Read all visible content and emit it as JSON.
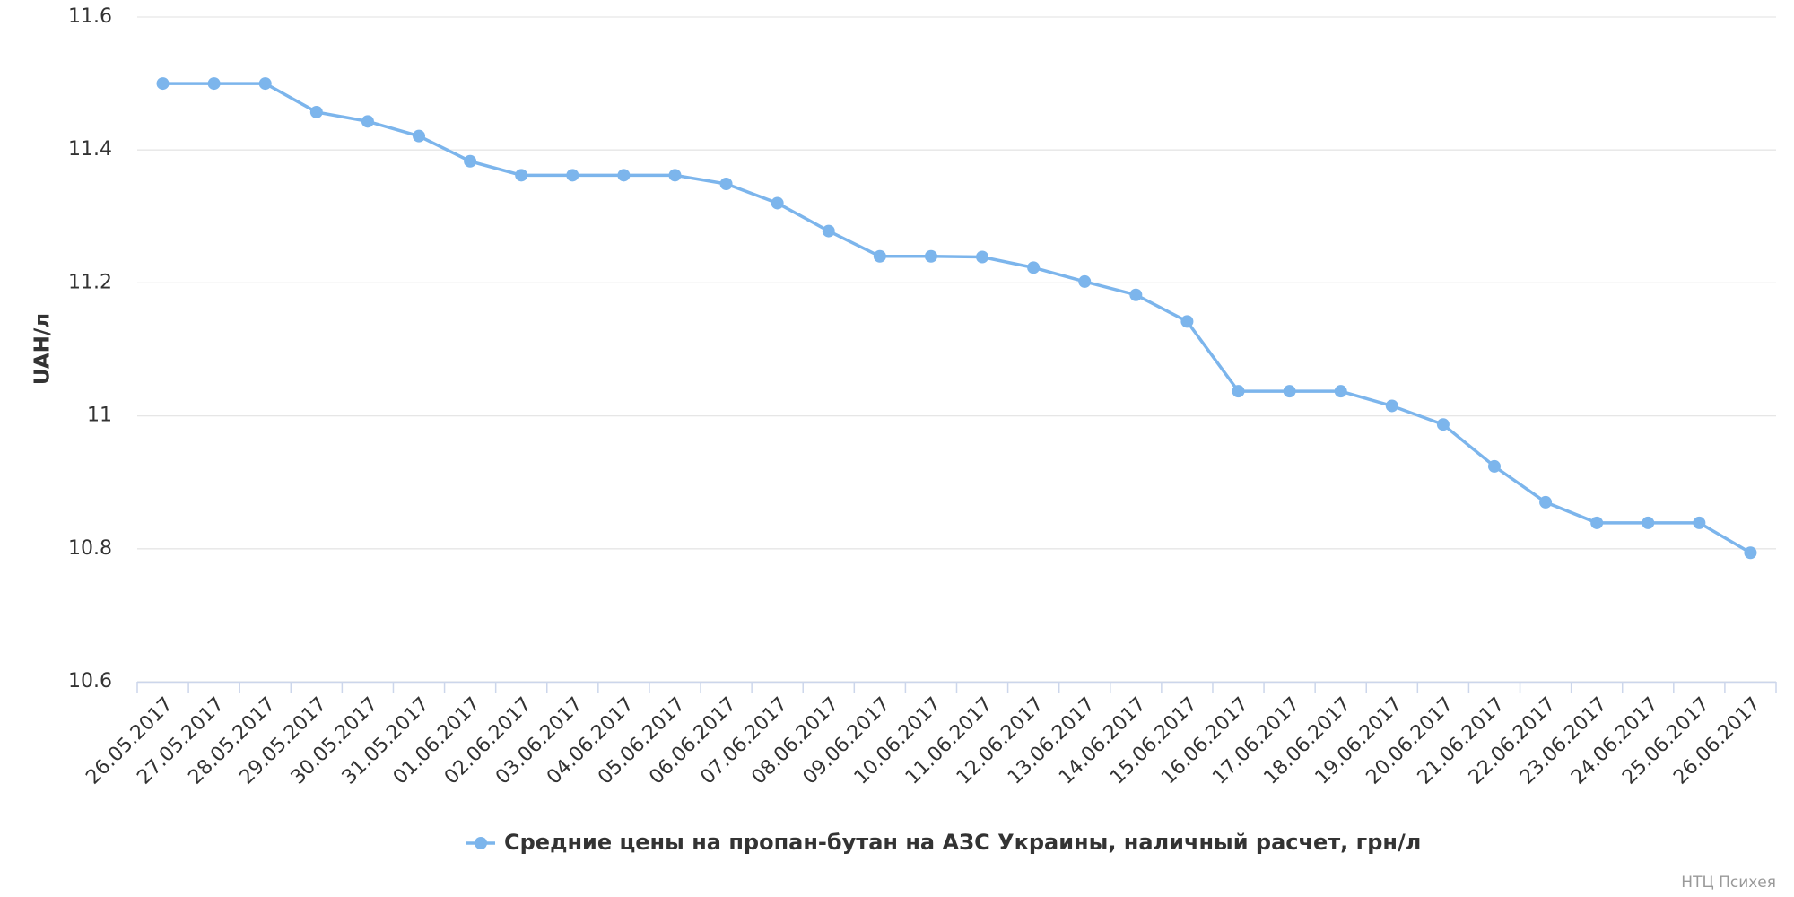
{
  "chart_data": {
    "type": "line",
    "y_label": "UAH/л",
    "credits": "НТЦ Психея",
    "categories": [
      "26.05.2017",
      "27.05.2017",
      "28.05.2017",
      "29.05.2017",
      "30.05.2017",
      "31.05.2017",
      "01.06.2017",
      "02.06.2017",
      "03.06.2017",
      "04.06.2017",
      "05.06.2017",
      "06.06.2017",
      "07.06.2017",
      "08.06.2017",
      "09.06.2017",
      "10.06.2017",
      "11.06.2017",
      "12.06.2017",
      "13.06.2017",
      "14.06.2017",
      "15.06.2017",
      "16.06.2017",
      "17.06.2017",
      "18.06.2017",
      "19.06.2017",
      "20.06.2017",
      "21.06.2017",
      "22.06.2017",
      "23.06.2017",
      "24.06.2017",
      "25.06.2017",
      "26.06.2017"
    ],
    "series": [
      {
        "name": "Средние цены на пропан-бутан на АЗС Украины, наличный расчет, грн/л",
        "color": "#7cb5ec",
        "values": [
          11.5,
          11.5,
          11.5,
          11.457,
          11.443,
          11.421,
          11.383,
          11.362,
          11.362,
          11.362,
          11.362,
          11.349,
          11.32,
          11.278,
          11.24,
          11.24,
          11.239,
          11.223,
          11.202,
          11.182,
          11.142,
          11.037,
          11.037,
          11.037,
          11.015,
          10.987,
          10.924,
          10.87,
          10.839,
          10.839,
          10.839,
          10.794
        ]
      }
    ],
    "ylim": [
      10.6,
      11.6
    ],
    "yticks": [
      10.6,
      10.8,
      11,
      11.2,
      11.4,
      11.6
    ],
    "grid": true,
    "legend": "bottom"
  }
}
